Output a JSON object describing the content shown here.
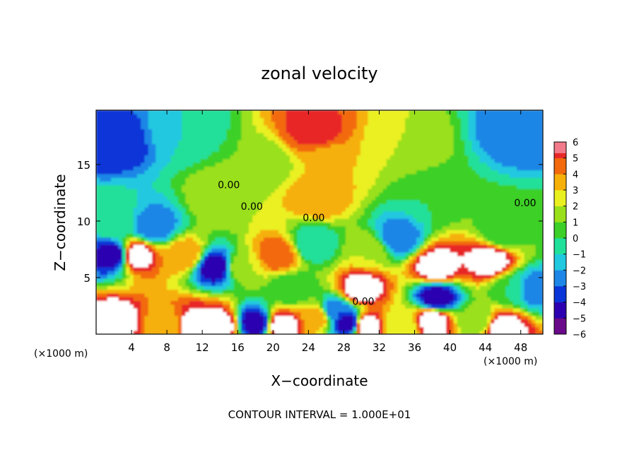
{
  "chart_data": {
    "type": "heatmap",
    "title": "zonal velocity",
    "xlabel": "X−coordinate",
    "ylabel": "Z−coordinate",
    "x_unit_left": "(×1000 m)",
    "x_unit_right": "(×1000 m)",
    "footer": "CONTOUR INTERVAL = 1.000E+01",
    "xlim": [
      0,
      50.5
    ],
    "ylim": [
      0,
      19.8
    ],
    "x_ticks": [
      4,
      8,
      12,
      16,
      20,
      24,
      28,
      32,
      36,
      40,
      44,
      48
    ],
    "y_ticks": [
      5,
      10,
      15
    ],
    "colorbar": {
      "range": [
        -6,
        6
      ],
      "ticks": [
        6,
        5,
        4,
        3,
        2,
        1,
        0,
        -1,
        -2,
        -3,
        -4,
        -5,
        -6
      ],
      "colors": [
        "#6a0a8a",
        "#2c00b0",
        "#0a35d8",
        "#1d86e6",
        "#20c8e0",
        "#20e09a",
        "#3cd028",
        "#9ae01a",
        "#eaf020",
        "#f6b008",
        "#f26a0c",
        "#e82828",
        "#f27a8a",
        "#ffffff"
      ]
    },
    "contour_labels": [
      {
        "text": "0.00",
        "x": 15.0,
        "z": 12.9
      },
      {
        "text": "0.00",
        "x": 17.6,
        "z": 11.0
      },
      {
        "text": "0.00",
        "x": 24.6,
        "z": 10.0
      },
      {
        "text": "0.00",
        "x": 30.2,
        "z": 2.6
      },
      {
        "text": "0.00",
        "x": 48.5,
        "z": 11.3
      }
    ],
    "field_centers": [
      {
        "x": 2,
        "z": 17,
        "v": -4
      },
      {
        "x": 10,
        "z": 18,
        "v": -1
      },
      {
        "x": 19,
        "z": 15,
        "v": 1
      },
      {
        "x": 24.5,
        "z": 18,
        "v": 5.5
      },
      {
        "x": 26,
        "z": 15,
        "v": 3
      },
      {
        "x": 25,
        "z": 12,
        "v": 4
      },
      {
        "x": 35,
        "z": 17,
        "v": 2
      },
      {
        "x": 38,
        "z": 12,
        "v": 0
      },
      {
        "x": 48,
        "z": 18,
        "v": -3
      },
      {
        "x": 46,
        "z": 9,
        "v": 0
      },
      {
        "x": 4.5,
        "z": 7,
        "v": 7
      },
      {
        "x": 2,
        "z": 7,
        "v": -5
      },
      {
        "x": 2,
        "z": 10,
        "v": 0
      },
      {
        "x": 6.5,
        "z": 9.5,
        "v": -3
      },
      {
        "x": 10,
        "z": 7,
        "v": 4
      },
      {
        "x": 13.5,
        "z": 6,
        "v": -5
      },
      {
        "x": 16.5,
        "z": 6,
        "v": 2
      },
      {
        "x": 14,
        "z": 12,
        "v": 2
      },
      {
        "x": 20.5,
        "z": 7,
        "v": 5
      },
      {
        "x": 22,
        "z": 4,
        "v": 0
      },
      {
        "x": 24.5,
        "z": 8,
        "v": -1
      },
      {
        "x": 30,
        "z": 4,
        "v": 7
      },
      {
        "x": 31,
        "z": 7.5,
        "v": 2
      },
      {
        "x": 27,
        "z": 2,
        "v": -3
      },
      {
        "x": 38.5,
        "z": 6,
        "v": 7
      },
      {
        "x": 38.5,
        "z": 3.2,
        "v": -5
      },
      {
        "x": 34,
        "z": 8.5,
        "v": -3
      },
      {
        "x": 44.5,
        "z": 6.5,
        "v": 7
      },
      {
        "x": 47,
        "z": 4,
        "v": 0
      },
      {
        "x": 49.5,
        "z": 4,
        "v": -3
      },
      {
        "x": 2,
        "z": 1.2,
        "v": 7
      },
      {
        "x": 8,
        "z": 0.8,
        "v": 3
      },
      {
        "x": 11,
        "z": 0.8,
        "v": 7
      },
      {
        "x": 14,
        "z": 0.8,
        "v": 7
      },
      {
        "x": 18,
        "z": 1,
        "v": -5
      },
      {
        "x": 21,
        "z": 0.8,
        "v": 7
      },
      {
        "x": 25,
        "z": 1.5,
        "v": 4
      },
      {
        "x": 28.5,
        "z": 1,
        "v": -5
      },
      {
        "x": 30.5,
        "z": 0.8,
        "v": 7
      },
      {
        "x": 34.5,
        "z": 0.8,
        "v": 2
      },
      {
        "x": 38,
        "z": 1.2,
        "v": 7
      },
      {
        "x": 43,
        "z": 1.2,
        "v": 1
      },
      {
        "x": 46,
        "z": 0.6,
        "v": 7
      }
    ]
  }
}
